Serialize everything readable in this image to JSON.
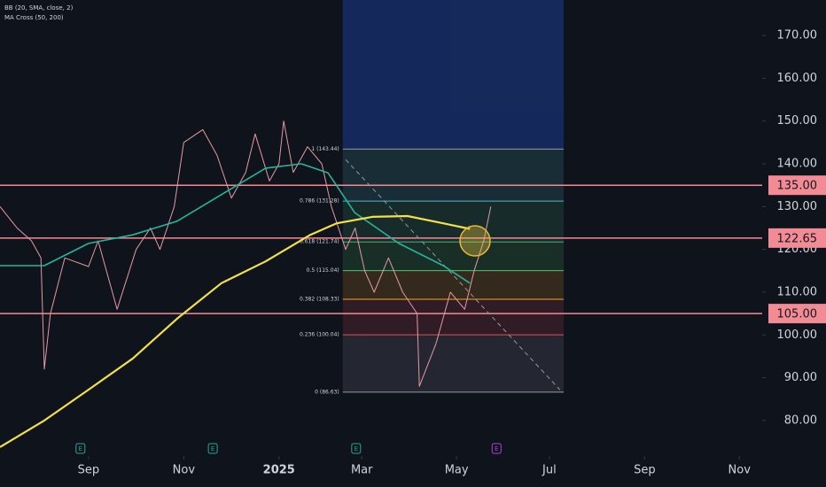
{
  "chart_data": {
    "type": "line",
    "indicators": [
      "BB (20, SMA, close, 2)",
      "MA Cross (50, 200)"
    ],
    "xlim": [
      -1.86,
      14.15
    ],
    "ylim": [
      71.7,
      178.3
    ],
    "yticks": [
      {
        "value": 80,
        "label": "80.00"
      },
      {
        "value": 90,
        "label": "90.00"
      },
      {
        "value": 100,
        "label": "100.00"
      },
      {
        "value": 110,
        "label": "110.00"
      },
      {
        "value": 120,
        "label": "120.00"
      },
      {
        "value": 130,
        "label": "130.00"
      },
      {
        "value": 140,
        "label": "140.00"
      },
      {
        "value": 150,
        "label": "150.00"
      },
      {
        "value": 160,
        "label": "160.00"
      },
      {
        "value": 170,
        "label": "170.00"
      }
    ],
    "xticks": [
      {
        "value": 0,
        "label": "Sep"
      },
      {
        "value": 2,
        "label": "Nov"
      },
      {
        "value": 4,
        "label": "2025"
      },
      {
        "value": 5.74,
        "label": "Mar"
      },
      {
        "value": 7.73,
        "label": "May"
      },
      {
        "value": 9.68,
        "label": "Jul"
      },
      {
        "value": 11.68,
        "label": "Sep"
      },
      {
        "value": 13.67,
        "label": "Nov"
      }
    ],
    "series": [
      {
        "color": "#e39aa3",
        "width": 1,
        "x": [
          -1.86,
          -1.5,
          -1.2,
          -1,
          -0.93,
          -0.8,
          -0.5,
          0,
          0.2,
          0.5,
          0.6,
          1,
          1.3,
          1.5,
          1.8,
          2,
          2.4,
          2.7,
          3,
          3.3,
          3.5,
          3.8,
          4,
          4.1,
          4.3,
          4.6,
          4.9,
          5.1,
          5.4,
          5.6,
          5.8,
          6,
          6.3,
          6.6,
          6.9,
          6.95,
          7.3,
          7.6,
          7.9,
          8.1,
          8.3,
          8.45
        ],
        "values": [
          130,
          125,
          122,
          118,
          92,
          105,
          118,
          116,
          122,
          110,
          106,
          120,
          125,
          120,
          130,
          145,
          148,
          142,
          132,
          138,
          147,
          136,
          140,
          150,
          138,
          144,
          140,
          130,
          120,
          125,
          115,
          110,
          118,
          110,
          105,
          88,
          98,
          110,
          106,
          115,
          122,
          130
        ]
      },
      {
        "color": "#26b59a",
        "width": 1.6,
        "x": [
          -1.86,
          -0.93,
          0,
          0.93,
          1.86,
          2.79,
          3.72,
          4.47,
          5.03,
          5.59,
          6.52,
          7.45,
          8.01
        ],
        "values": [
          116.2,
          116.2,
          121.4,
          123.4,
          126.6,
          132.8,
          139.0,
          140.0,
          137.9,
          128.6,
          121.4,
          116.2,
          112.1
        ]
      },
      {
        "color": "#f2e04b",
        "width": 2.2,
        "x": [
          -1.86,
          -0.93,
          0,
          0.93,
          1.86,
          2.79,
          3.72,
          4.66,
          5.21,
          5.96,
          6.7,
          7.45,
          8.01
        ],
        "values": [
          73.8,
          80.0,
          87.2,
          94.5,
          103.8,
          112.1,
          117.2,
          123.4,
          126.1,
          127.6,
          127.8,
          126.1,
          124.8
        ]
      }
    ],
    "levels": [
      {
        "value": 135,
        "label": "135.00",
        "color": "#f28b93"
      },
      {
        "value": 122.65,
        "label": "122.65",
        "color": "#f28b93"
      },
      {
        "value": 105,
        "label": "105.00",
        "color": "#f28b93"
      }
    ],
    "fib_x": [
      5.34,
      9.98
    ],
    "fib_levels": [
      {
        "value": 143.44,
        "label": "1 (143.44)",
        "color": "#9598a1"
      },
      {
        "value": 131.28,
        "label": "0.786 (131.28)",
        "color": "#4fb8c9"
      },
      {
        "value": 121.74,
        "label": "0.618 (121.74)",
        "color": "#4caf7d"
      },
      {
        "value": 115.04,
        "label": "0.5 (115.04)",
        "color": "#59c26a"
      },
      {
        "value": 108.33,
        "label": "0.382 (108.33)",
        "color": "#f5a623"
      },
      {
        "value": 100.04,
        "label": "0.236 (100.04)",
        "color": "#e04f5a"
      },
      {
        "value": 86.63,
        "label": "0 (86.63)",
        "color": "#9598a1"
      }
    ],
    "trend_line": {
      "x": [
        5.4,
        9.9
      ],
      "values": [
        141.0,
        87.2
      ]
    },
    "events": [
      {
        "x": -0.17,
        "label": "E",
        "color": "#26a69a"
      },
      {
        "x": 2.61,
        "label": "E",
        "color": "#26a69a"
      },
      {
        "x": 5.62,
        "label": "E",
        "color": "#26a69a"
      },
      {
        "x": 8.57,
        "label": "E",
        "color": "#b044d8"
      }
    ]
  }
}
